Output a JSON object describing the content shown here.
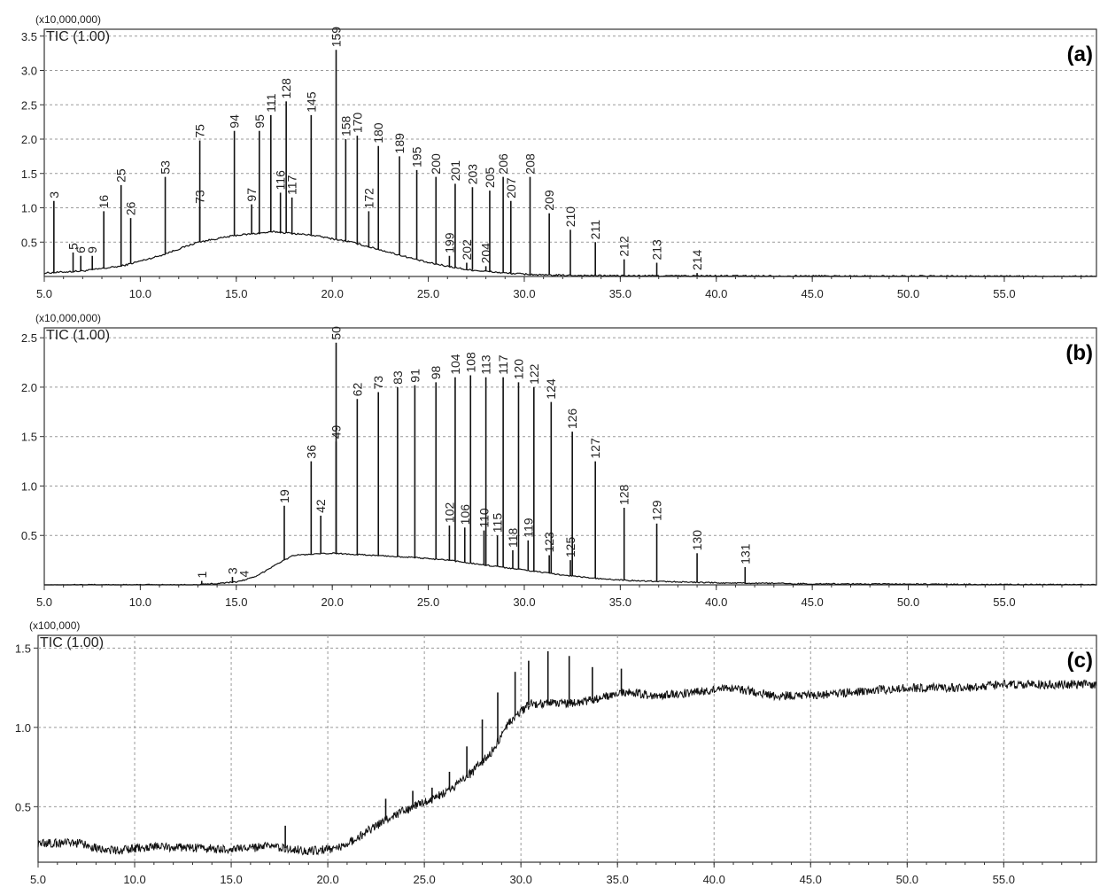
{
  "chart_data": [
    {
      "type": "line",
      "panel_label": "(a)",
      "multiplier_label": "(x10,000,000)",
      "trace_label": "TIC (1.00)",
      "x_ticks": [
        "5.0",
        "10.0",
        "15.0",
        "20.0",
        "25.0",
        "30.0",
        "35.0",
        "40.0",
        "45.0",
        "50.0",
        "55.0"
      ],
      "y_ticks": [
        "0.5",
        "1.0",
        "1.5",
        "2.0",
        "2.5",
        "3.0",
        "3.5"
      ],
      "xlim": [
        5.0,
        59.8
      ],
      "ylim": [
        0.0,
        3.6
      ],
      "grid": true,
      "baseline": [
        [
          5.0,
          0.05
        ],
        [
          7.0,
          0.08
        ],
        [
          9.0,
          0.15
        ],
        [
          11.0,
          0.3
        ],
        [
          13.0,
          0.5
        ],
        [
          15.0,
          0.6
        ],
        [
          17.0,
          0.65
        ],
        [
          19.0,
          0.6
        ],
        [
          21.0,
          0.5
        ],
        [
          23.0,
          0.35
        ],
        [
          25.0,
          0.2
        ],
        [
          27.0,
          0.1
        ],
        [
          29.0,
          0.05
        ],
        [
          31.0,
          0.02
        ],
        [
          35.0,
          0.01
        ],
        [
          59.8,
          0.0
        ]
      ],
      "peaks": [
        {
          "label": "3",
          "x": 5.5,
          "y": 1.1
        },
        {
          "label": "5",
          "x": 6.5,
          "y": 0.35
        },
        {
          "label": "6",
          "x": 6.9,
          "y": 0.3
        },
        {
          "label": "9",
          "x": 7.5,
          "y": 0.3
        },
        {
          "label": "16",
          "x": 8.1,
          "y": 0.95
        },
        {
          "label": "25",
          "x": 9.0,
          "y": 1.33
        },
        {
          "label": "26",
          "x": 9.5,
          "y": 0.85
        },
        {
          "label": "53",
          "x": 11.3,
          "y": 1.45
        },
        {
          "label": "73",
          "x": 13.1,
          "y": 1.02
        },
        {
          "label": "75",
          "x": 13.1,
          "y": 1.98
        },
        {
          "label": "94",
          "x": 14.9,
          "y": 2.12
        },
        {
          "label": "97",
          "x": 15.8,
          "y": 1.05
        },
        {
          "label": "95",
          "x": 16.2,
          "y": 2.12
        },
        {
          "label": "111",
          "x": 16.8,
          "y": 2.35
        },
        {
          "label": "116",
          "x": 17.3,
          "y": 1.22
        },
        {
          "label": "117",
          "x": 17.9,
          "y": 1.15
        },
        {
          "label": "128",
          "x": 17.6,
          "y": 2.55
        },
        {
          "label": "145",
          "x": 18.9,
          "y": 2.35
        },
        {
          "label": "159",
          "x": 20.2,
          "y": 3.3
        },
        {
          "label": "158",
          "x": 20.7,
          "y": 2.0
        },
        {
          "label": "170",
          "x": 21.3,
          "y": 2.05
        },
        {
          "label": "172",
          "x": 21.9,
          "y": 0.95
        },
        {
          "label": "180",
          "x": 22.4,
          "y": 1.9
        },
        {
          "label": "189",
          "x": 23.5,
          "y": 1.75
        },
        {
          "label": "195",
          "x": 24.4,
          "y": 1.55
        },
        {
          "label": "200",
          "x": 25.4,
          "y": 1.45
        },
        {
          "label": "199",
          "x": 26.1,
          "y": 0.3
        },
        {
          "label": "201",
          "x": 26.4,
          "y": 1.35
        },
        {
          "label": "202",
          "x": 27.0,
          "y": 0.2
        },
        {
          "label": "203",
          "x": 27.3,
          "y": 1.3
        },
        {
          "label": "204",
          "x": 28.0,
          "y": 0.15
        },
        {
          "label": "205",
          "x": 28.2,
          "y": 1.25
        },
        {
          "label": "206",
          "x": 28.9,
          "y": 1.45
        },
        {
          "label": "207",
          "x": 29.3,
          "y": 1.1
        },
        {
          "label": "208",
          "x": 30.3,
          "y": 1.45
        },
        {
          "label": "209",
          "x": 31.3,
          "y": 0.92
        },
        {
          "label": "210",
          "x": 32.4,
          "y": 0.68
        },
        {
          "label": "211",
          "x": 33.7,
          "y": 0.5
        },
        {
          "label": "212",
          "x": 35.2,
          "y": 0.25
        },
        {
          "label": "213",
          "x": 36.9,
          "y": 0.2
        },
        {
          "label": "214",
          "x": 39.0,
          "y": 0.05
        }
      ]
    },
    {
      "type": "line",
      "panel_label": "(b)",
      "multiplier_label": "(x10,000,000)",
      "trace_label": "TIC (1.00)",
      "x_ticks": [
        "5.0",
        "10.0",
        "15.0",
        "20.0",
        "25.0",
        "30.0",
        "35.0",
        "40.0",
        "45.0",
        "50.0",
        "55.0"
      ],
      "y_ticks": [
        "0.5",
        "1.0",
        "1.5",
        "2.0",
        "2.5"
      ],
      "xlim": [
        5.0,
        59.8
      ],
      "ylim": [
        0.0,
        2.6
      ],
      "grid": true,
      "baseline": [
        [
          5.0,
          0.0
        ],
        [
          13.0,
          0.0
        ],
        [
          15.0,
          0.03
        ],
        [
          16.0,
          0.08
        ],
        [
          17.0,
          0.2
        ],
        [
          18.0,
          0.3
        ],
        [
          20.0,
          0.32
        ],
        [
          22.0,
          0.3
        ],
        [
          24.0,
          0.28
        ],
        [
          26.0,
          0.25
        ],
        [
          28.0,
          0.2
        ],
        [
          30.0,
          0.15
        ],
        [
          32.0,
          0.1
        ],
        [
          34.0,
          0.06
        ],
        [
          36.0,
          0.04
        ],
        [
          40.0,
          0.02
        ],
        [
          45.0,
          0.01
        ],
        [
          59.8,
          0.0
        ]
      ],
      "peaks": [
        {
          "label": "1",
          "x": 13.2,
          "y": 0.04
        },
        {
          "label": "3",
          "x": 14.8,
          "y": 0.08
        },
        {
          "label": "4",
          "x": 15.4,
          "y": 0.05
        },
        {
          "label": "19",
          "x": 17.5,
          "y": 0.8
        },
        {
          "label": "36",
          "x": 18.9,
          "y": 1.25
        },
        {
          "label": "42",
          "x": 19.4,
          "y": 0.7
        },
        {
          "label": "49",
          "x": 20.2,
          "y": 1.45
        },
        {
          "label": "50",
          "x": 20.2,
          "y": 2.45
        },
        {
          "label": "62",
          "x": 21.3,
          "y": 1.88
        },
        {
          "label": "73",
          "x": 22.4,
          "y": 1.95
        },
        {
          "label": "83",
          "x": 23.4,
          "y": 2.0
        },
        {
          "label": "91",
          "x": 24.3,
          "y": 2.02
        },
        {
          "label": "98",
          "x": 25.4,
          "y": 2.05
        },
        {
          "label": "102",
          "x": 26.1,
          "y": 0.6
        },
        {
          "label": "104",
          "x": 26.4,
          "y": 2.1
        },
        {
          "label": "106",
          "x": 26.9,
          "y": 0.58
        },
        {
          "label": "108",
          "x": 27.2,
          "y": 2.12
        },
        {
          "label": "110",
          "x": 27.9,
          "y": 0.55
        },
        {
          "label": "113",
          "x": 28.0,
          "y": 2.1
        },
        {
          "label": "115",
          "x": 28.6,
          "y": 0.5
        },
        {
          "label": "117",
          "x": 28.9,
          "y": 2.1
        },
        {
          "label": "118",
          "x": 29.4,
          "y": 0.35
        },
        {
          "label": "119",
          "x": 30.2,
          "y": 0.45
        },
        {
          "label": "120",
          "x": 29.7,
          "y": 2.05
        },
        {
          "label": "122",
          "x": 30.5,
          "y": 2.0
        },
        {
          "label": "123",
          "x": 31.3,
          "y": 0.3
        },
        {
          "label": "124",
          "x": 31.4,
          "y": 1.85
        },
        {
          "label": "125",
          "x": 32.4,
          "y": 0.25
        },
        {
          "label": "126",
          "x": 32.5,
          "y": 1.55
        },
        {
          "label": "127",
          "x": 33.7,
          "y": 1.25
        },
        {
          "label": "128",
          "x": 35.2,
          "y": 0.78
        },
        {
          "label": "129",
          "x": 36.9,
          "y": 0.62
        },
        {
          "label": "130",
          "x": 39.0,
          "y": 0.32
        },
        {
          "label": "131",
          "x": 41.5,
          "y": 0.18
        }
      ]
    },
    {
      "type": "line",
      "panel_label": "(c)",
      "multiplier_label": "(x100,000)",
      "trace_label": "TIC (1.00)",
      "x_ticks": [
        "5.0",
        "10.0",
        "15.0",
        "20.0",
        "25.0",
        "30.0",
        "35.0",
        "40.0",
        "45.0",
        "50.0",
        "55.0"
      ],
      "y_ticks": [
        "0.5",
        "1.0",
        "1.5"
      ],
      "xlim": [
        5.0,
        59.8
      ],
      "ylim": [
        0.15,
        1.58
      ],
      "grid": true,
      "baseline": [
        [
          5.0,
          0.27
        ],
        [
          7.0,
          0.27
        ],
        [
          9.0,
          0.22
        ],
        [
          11.0,
          0.25
        ],
        [
          13.0,
          0.24
        ],
        [
          15.0,
          0.23
        ],
        [
          17.0,
          0.25
        ],
        [
          19.0,
          0.22
        ],
        [
          20.5,
          0.24
        ],
        [
          21.5,
          0.3
        ],
        [
          22.5,
          0.38
        ],
        [
          23.5,
          0.45
        ],
        [
          24.5,
          0.5
        ],
        [
          25.5,
          0.55
        ],
        [
          26.5,
          0.62
        ],
        [
          27.5,
          0.72
        ],
        [
          28.5,
          0.85
        ],
        [
          29.5,
          1.05
        ],
        [
          30.5,
          1.15
        ],
        [
          31.5,
          1.15
        ],
        [
          32.5,
          1.15
        ],
        [
          33.5,
          1.17
        ],
        [
          34.5,
          1.2
        ],
        [
          35.5,
          1.22
        ],
        [
          37.0,
          1.2
        ],
        [
          39.0,
          1.22
        ],
        [
          41.0,
          1.25
        ],
        [
          43.0,
          1.2
        ],
        [
          45.0,
          1.2
        ],
        [
          47.0,
          1.22
        ],
        [
          49.0,
          1.24
        ],
        [
          51.0,
          1.25
        ],
        [
          53.0,
          1.25
        ],
        [
          55.0,
          1.27
        ],
        [
          57.0,
          1.27
        ],
        [
          59.8,
          1.27
        ]
      ],
      "peaks": [
        {
          "label": "",
          "x": 17.8,
          "y": 0.38
        },
        {
          "label": "",
          "x": 23.0,
          "y": 0.55
        },
        {
          "label": "",
          "x": 24.4,
          "y": 0.6
        },
        {
          "label": "",
          "x": 25.4,
          "y": 0.62
        },
        {
          "label": "",
          "x": 26.3,
          "y": 0.72
        },
        {
          "label": "",
          "x": 27.2,
          "y": 0.88
        },
        {
          "label": "",
          "x": 28.0,
          "y": 1.05
        },
        {
          "label": "",
          "x": 28.8,
          "y": 1.22
        },
        {
          "label": "",
          "x": 29.7,
          "y": 1.35
        },
        {
          "label": "",
          "x": 30.4,
          "y": 1.42
        },
        {
          "label": "",
          "x": 31.4,
          "y": 1.48
        },
        {
          "label": "",
          "x": 32.5,
          "y": 1.45
        },
        {
          "label": "",
          "x": 33.7,
          "y": 1.38
        },
        {
          "label": "",
          "x": 35.2,
          "y": 1.37
        }
      ]
    }
  ]
}
